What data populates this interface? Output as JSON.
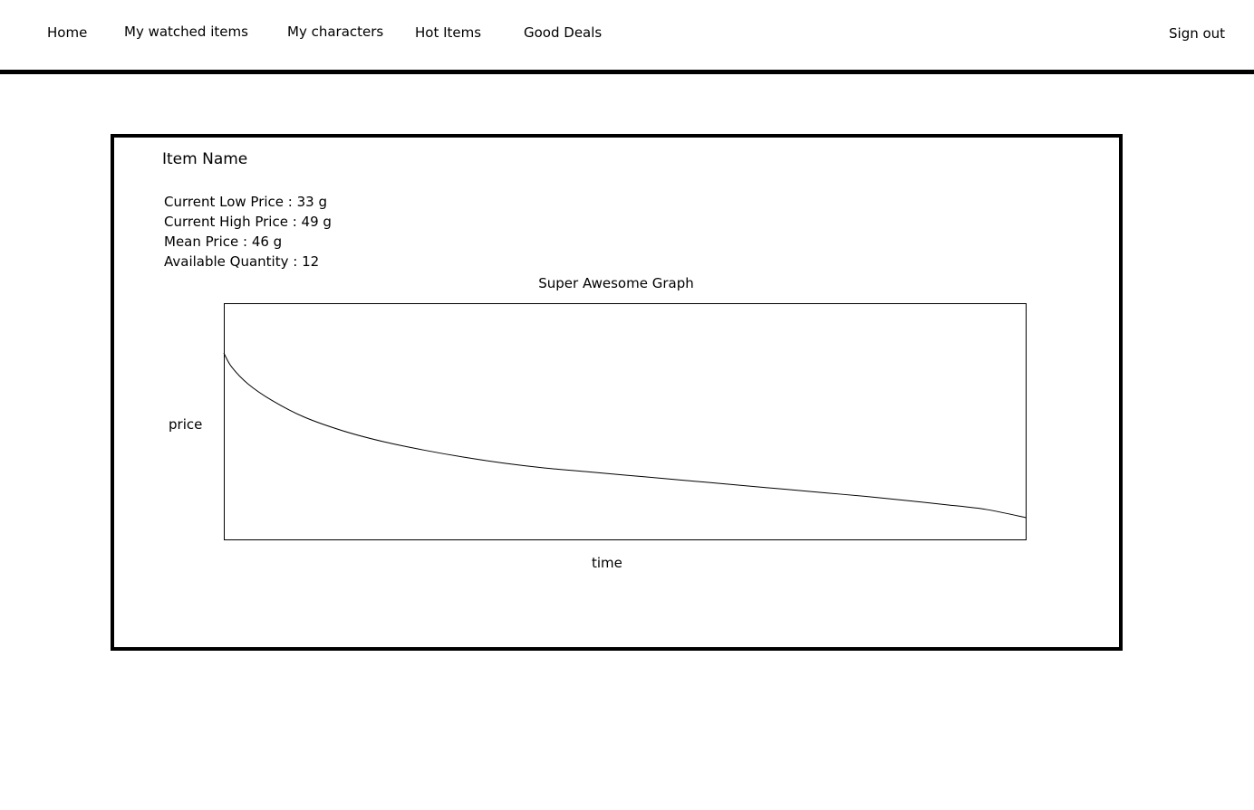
{
  "nav": {
    "home": "Home",
    "watched": "My watched items",
    "characters": "My characters",
    "hot": "Hot Items",
    "deals": "Good Deals",
    "signout": "Sign out"
  },
  "item": {
    "name": "Item Name",
    "stats": {
      "low": "Current Low Price : 33 g",
      "high": "Current High Price : 49 g",
      "mean": "Mean Price : 46 g",
      "quantity": "Available Quantity : 12"
    }
  },
  "chart_data": {
    "type": "line",
    "title": "Super Awesome Graph",
    "xlabel": "time",
    "ylabel": "price",
    "grid": false,
    "legend": "none",
    "xlim": [
      0,
      1
    ],
    "ylim": [
      0,
      1
    ],
    "x": [
      0,
      0.01,
      0.03,
      0.06,
      0.1,
      0.15,
      0.2,
      0.25,
      0.3,
      0.35,
      0.4,
      0.45,
      0.5,
      0.55,
      0.6,
      0.65,
      0.7,
      0.75,
      0.8,
      0.85,
      0.9,
      0.95,
      1
    ],
    "values": [
      0.79,
      0.73,
      0.66,
      0.59,
      0.52,
      0.46,
      0.415,
      0.38,
      0.35,
      0.325,
      0.305,
      0.29,
      0.275,
      0.26,
      0.245,
      0.23,
      0.215,
      0.2,
      0.185,
      0.168,
      0.15,
      0.13,
      0.095
    ]
  },
  "colors": {
    "background": "#ffffff",
    "foreground": "#000000"
  }
}
